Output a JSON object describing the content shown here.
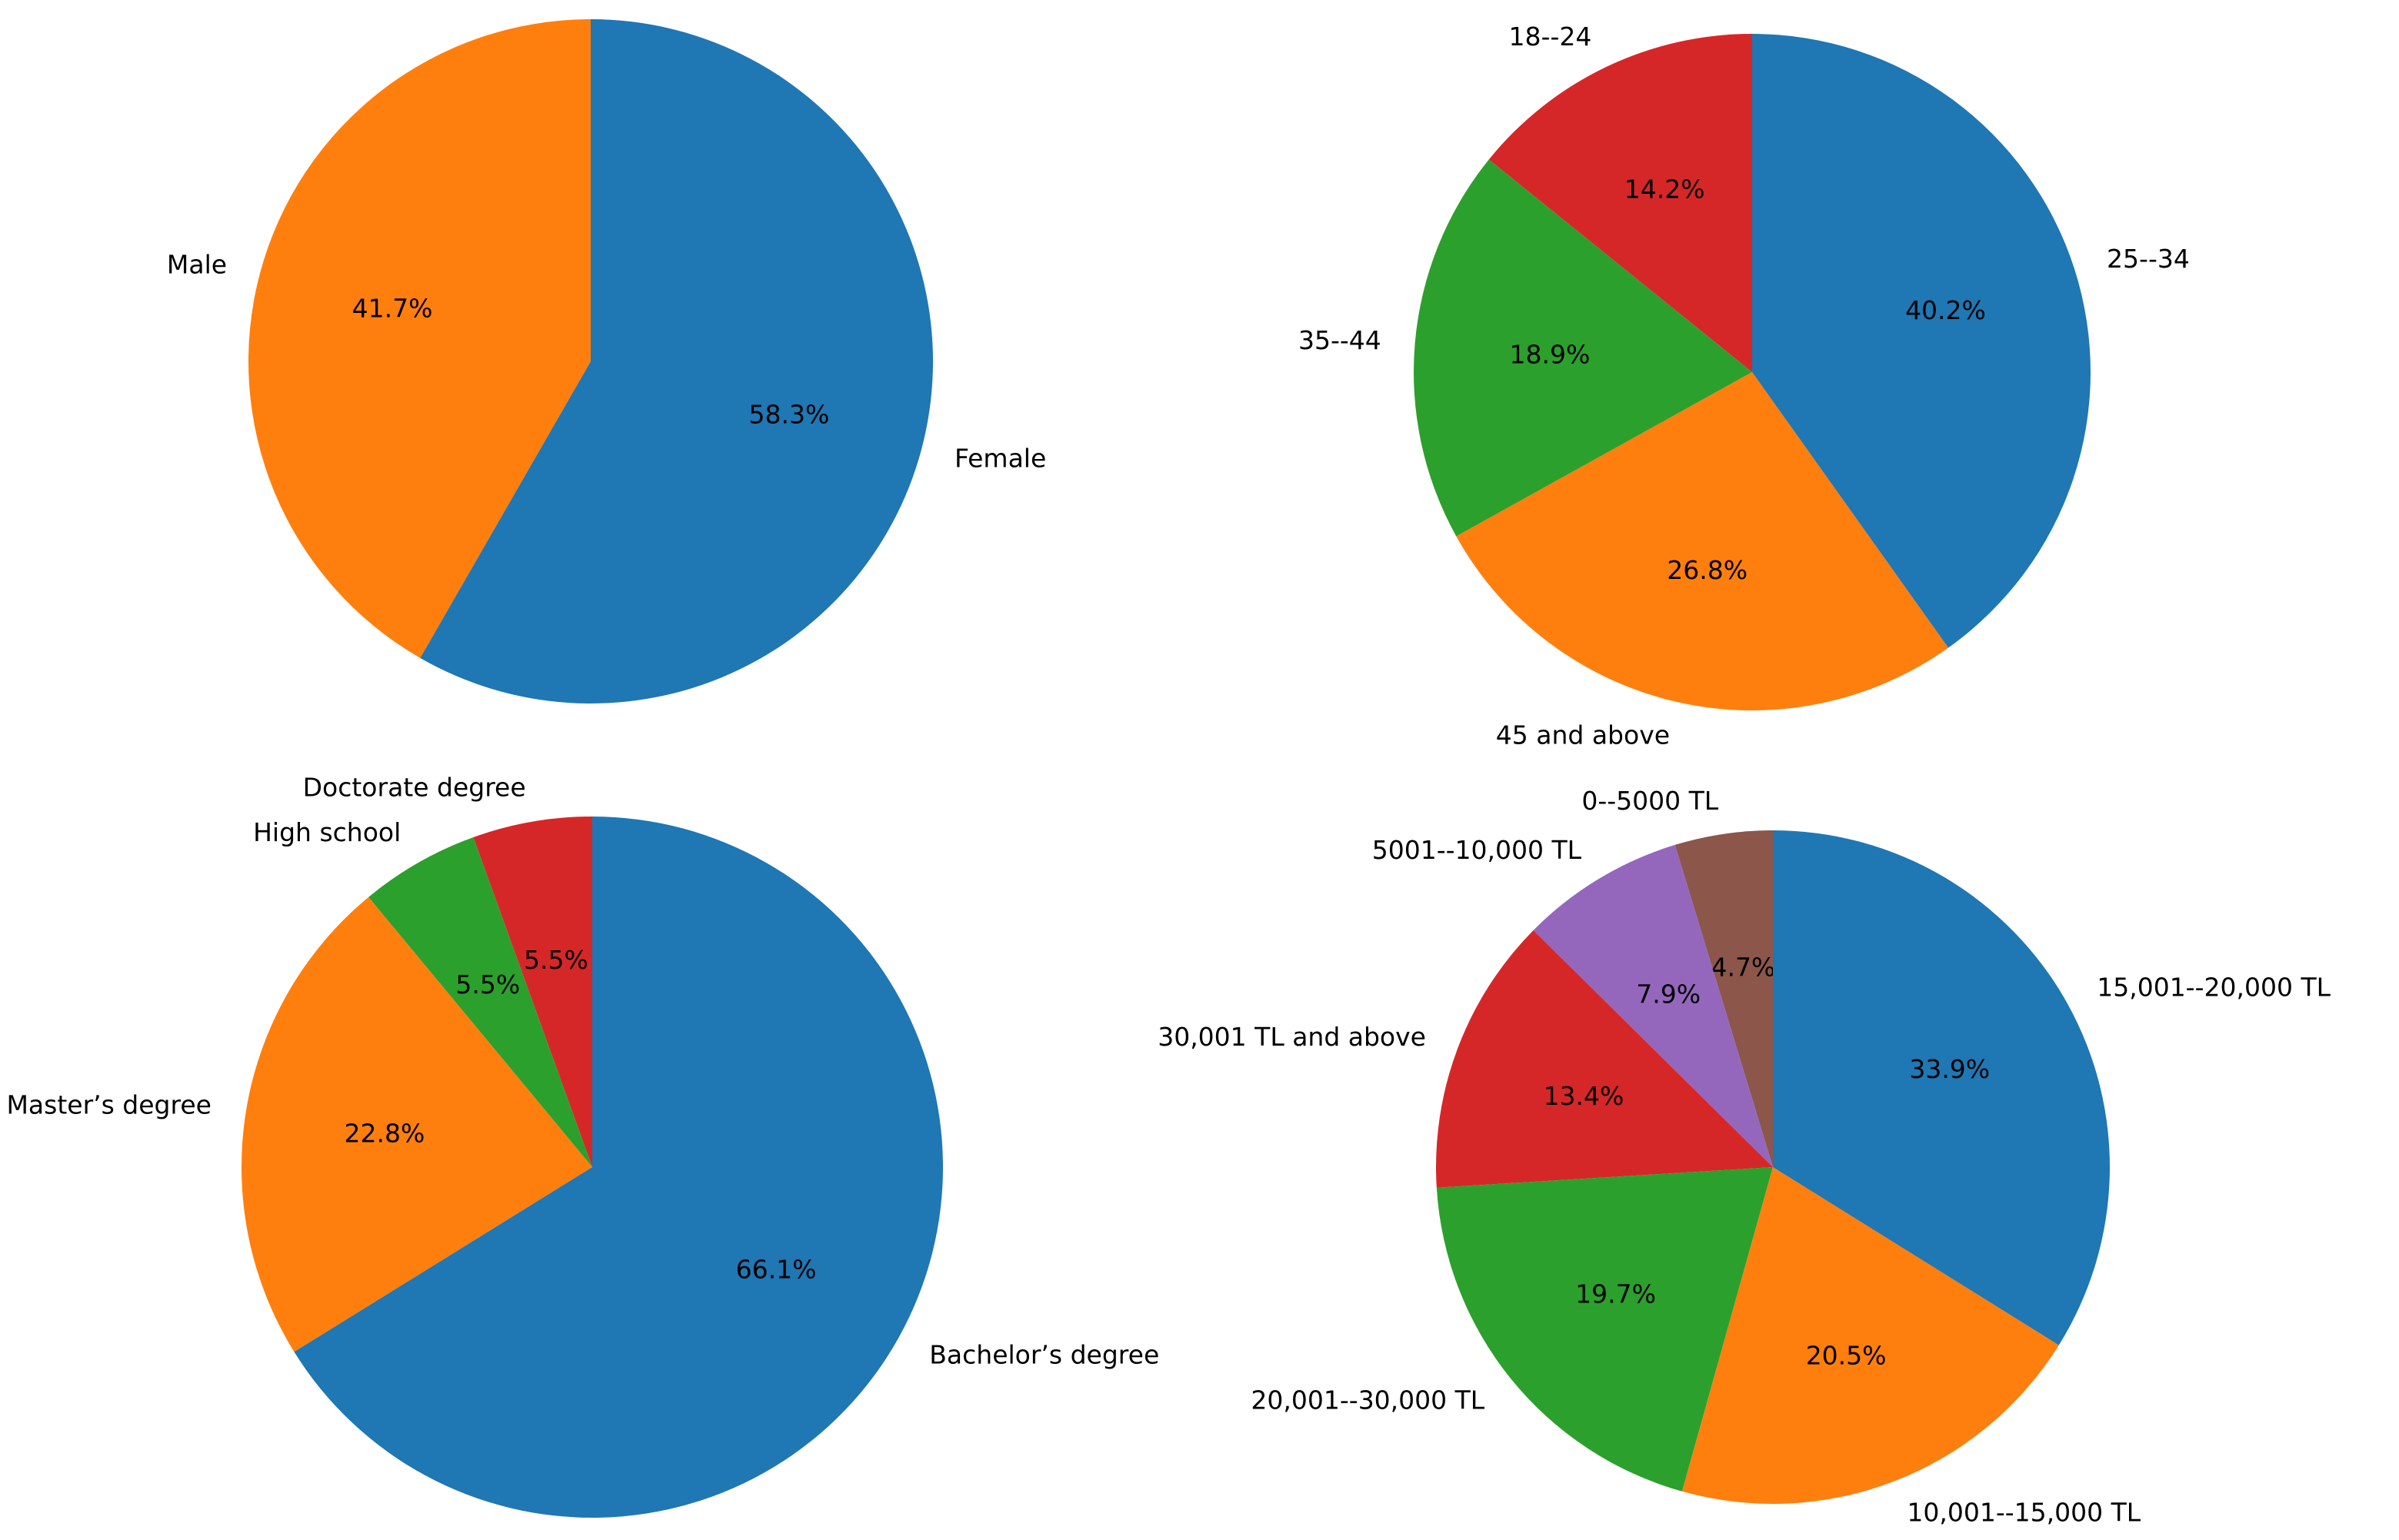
{
  "chart_data": [
    {
      "type": "pie",
      "id": "gender",
      "slices": [
        {
          "label": "Male",
          "value": 41.7,
          "pct_text": "41.7%",
          "color": "#ff7f0e"
        },
        {
          "label": "Female",
          "value": 58.3,
          "pct_text": "58.3%",
          "color": "#1f77b4"
        }
      ]
    },
    {
      "type": "pie",
      "id": "age",
      "slices": [
        {
          "label": "18--24",
          "value": 14.2,
          "pct_text": "14.2%",
          "color": "#d62728"
        },
        {
          "label": "35--44",
          "value": 18.9,
          "pct_text": "18.9%",
          "color": "#2ca02c"
        },
        {
          "label": "45 and above",
          "value": 26.8,
          "pct_text": "26.8%",
          "color": "#ff7f0e"
        },
        {
          "label": "25--34",
          "value": 40.2,
          "pct_text": "40.2%",
          "color": "#1f77b4"
        }
      ]
    },
    {
      "type": "pie",
      "id": "education",
      "slices": [
        {
          "label": "Doctorate degree",
          "value": 5.5,
          "pct_text": "5.5%",
          "color": "#d62728"
        },
        {
          "label": "High school",
          "value": 5.5,
          "pct_text": "5.5%",
          "color": "#2ca02c"
        },
        {
          "label": "Master’s degree",
          "value": 22.8,
          "pct_text": "22.8%",
          "color": "#ff7f0e"
        },
        {
          "label": "Bachelor’s degree",
          "value": 66.1,
          "pct_text": "66.1%",
          "color": "#1f77b4"
        }
      ]
    },
    {
      "type": "pie",
      "id": "income",
      "slices": [
        {
          "label": "0--5000 TL",
          "value": 4.7,
          "pct_text": "4.7%",
          "color": "#8c564b"
        },
        {
          "label": "5001--10,000 TL",
          "value": 7.9,
          "pct_text": "7.9%",
          "color": "#9467bd"
        },
        {
          "label": "30,001 TL and above",
          "value": 13.4,
          "pct_text": "13.4%",
          "color": "#d62728"
        },
        {
          "label": "20,001--30,000 TL",
          "value": 19.7,
          "pct_text": "19.7%",
          "color": "#2ca02c"
        },
        {
          "label": "10,001--15,000 TL",
          "value": 20.5,
          "pct_text": "20.5%",
          "color": "#ff7f0e"
        },
        {
          "label": "15,001--20,000 TL",
          "value": 33.9,
          "pct_text": "33.9%",
          "color": "#1f77b4"
        }
      ]
    }
  ]
}
